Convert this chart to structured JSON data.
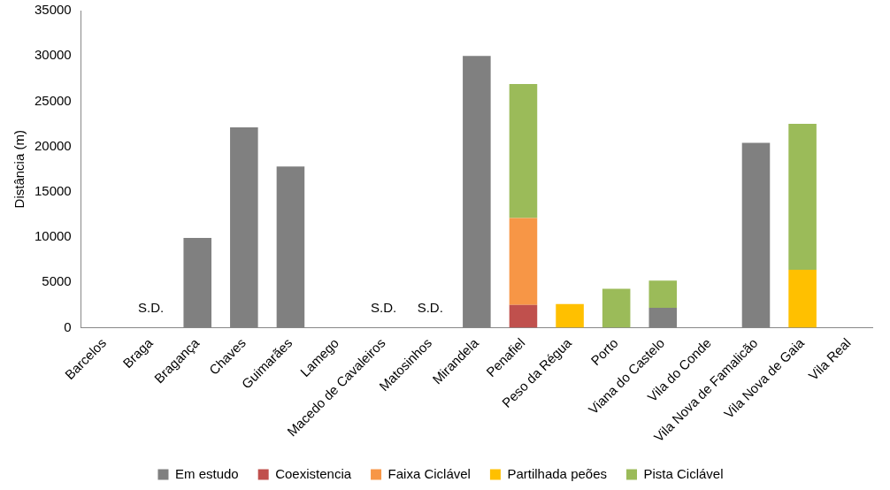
{
  "chart_data": {
    "type": "bar",
    "stacked": true,
    "ylabel": "Distância (m)",
    "categories": [
      "Barcelos",
      "Braga",
      "Bragança",
      "Chaves",
      "Guimarães",
      "Lamego",
      "Macedo de Cavaleiros",
      "Matosinhos",
      "Mirandela",
      "Penafiel",
      "Peso da Régua",
      "Porto",
      "Viana do Castelo",
      "Vila do Conde",
      "Vila Nova de Famalicão",
      "Vila Nova de Gaia",
      "Vila Real"
    ],
    "series": [
      {
        "name": "Em estudo",
        "color": "#808080",
        "values": [
          null,
          null,
          9900,
          22100,
          17800,
          null,
          null,
          null,
          30000,
          null,
          null,
          null,
          2200,
          null,
          20400,
          null,
          null
        ],
        "value_labels": [
          null,
          "S.D.",
          null,
          null,
          null,
          null,
          "S.D.",
          "S.D.",
          null,
          null,
          null,
          null,
          null,
          null,
          null,
          null,
          null
        ]
      },
      {
        "name": "Coexistencia",
        "color": "#c0504d",
        "values": [
          null,
          null,
          null,
          null,
          null,
          null,
          null,
          null,
          null,
          2500,
          null,
          null,
          null,
          null,
          null,
          null,
          null
        ]
      },
      {
        "name": "Faixa Ciclável",
        "color": "#f79646",
        "values": [
          null,
          null,
          null,
          null,
          null,
          null,
          null,
          null,
          null,
          9600,
          null,
          null,
          null,
          null,
          null,
          null,
          null
        ]
      },
      {
        "name": "Partilhada peões",
        "color": "#ffc000",
        "values": [
          null,
          null,
          null,
          null,
          null,
          null,
          null,
          null,
          null,
          null,
          2600,
          null,
          null,
          null,
          null,
          6400,
          null
        ]
      },
      {
        "name": "Pista Ciclável",
        "color": "#9bbb59",
        "values": [
          null,
          null,
          null,
          null,
          null,
          null,
          null,
          null,
          null,
          14800,
          null,
          4300,
          3000,
          null,
          null,
          16100,
          null
        ]
      }
    ],
    "ylim": [
      0,
      35000
    ],
    "yticks": [
      0,
      5000,
      10000,
      15000,
      20000,
      25000,
      30000,
      35000
    ],
    "grid": false,
    "legend": "bottom"
  }
}
